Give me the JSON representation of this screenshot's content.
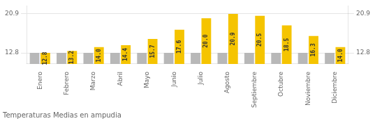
{
  "chart_data": {
    "type": "bar",
    "title": "Temperaturas Medias en ampudia",
    "categories": [
      "Enero",
      "Febrero",
      "Marzo",
      "Abril",
      "Mayo",
      "Junio",
      "Julio",
      "Agosto",
      "Septiembre",
      "Octubre",
      "Noviembre",
      "Diciembre"
    ],
    "series": [
      {
        "color": "#B8B8B8",
        "values": [
          12.8,
          12.8,
          12.8,
          12.8,
          12.8,
          12.8,
          12.8,
          12.8,
          12.8,
          12.8,
          12.8,
          12.8
        ]
      },
      {
        "color": "#F5C400",
        "values": [
          12.8,
          13.2,
          14.0,
          14.4,
          15.7,
          17.6,
          20.0,
          20.9,
          20.5,
          18.5,
          16.3,
          14.0
        ],
        "data_labels": true,
        "value_labels": [
          "12.8",
          "13.2",
          "14.0",
          "14.4",
          "15.7",
          "17.6",
          "20.0",
          "20.9",
          "20.5",
          "18.5",
          "16.3",
          "14.0"
        ]
      }
    ],
    "ylim": [
      10.5,
      22.572
    ],
    "yticks": [
      12.8,
      20.9
    ],
    "y2lim": [
      10.5,
      22.572
    ],
    "y2ticks": [
      12.8,
      20.9
    ],
    "grid": true
  }
}
